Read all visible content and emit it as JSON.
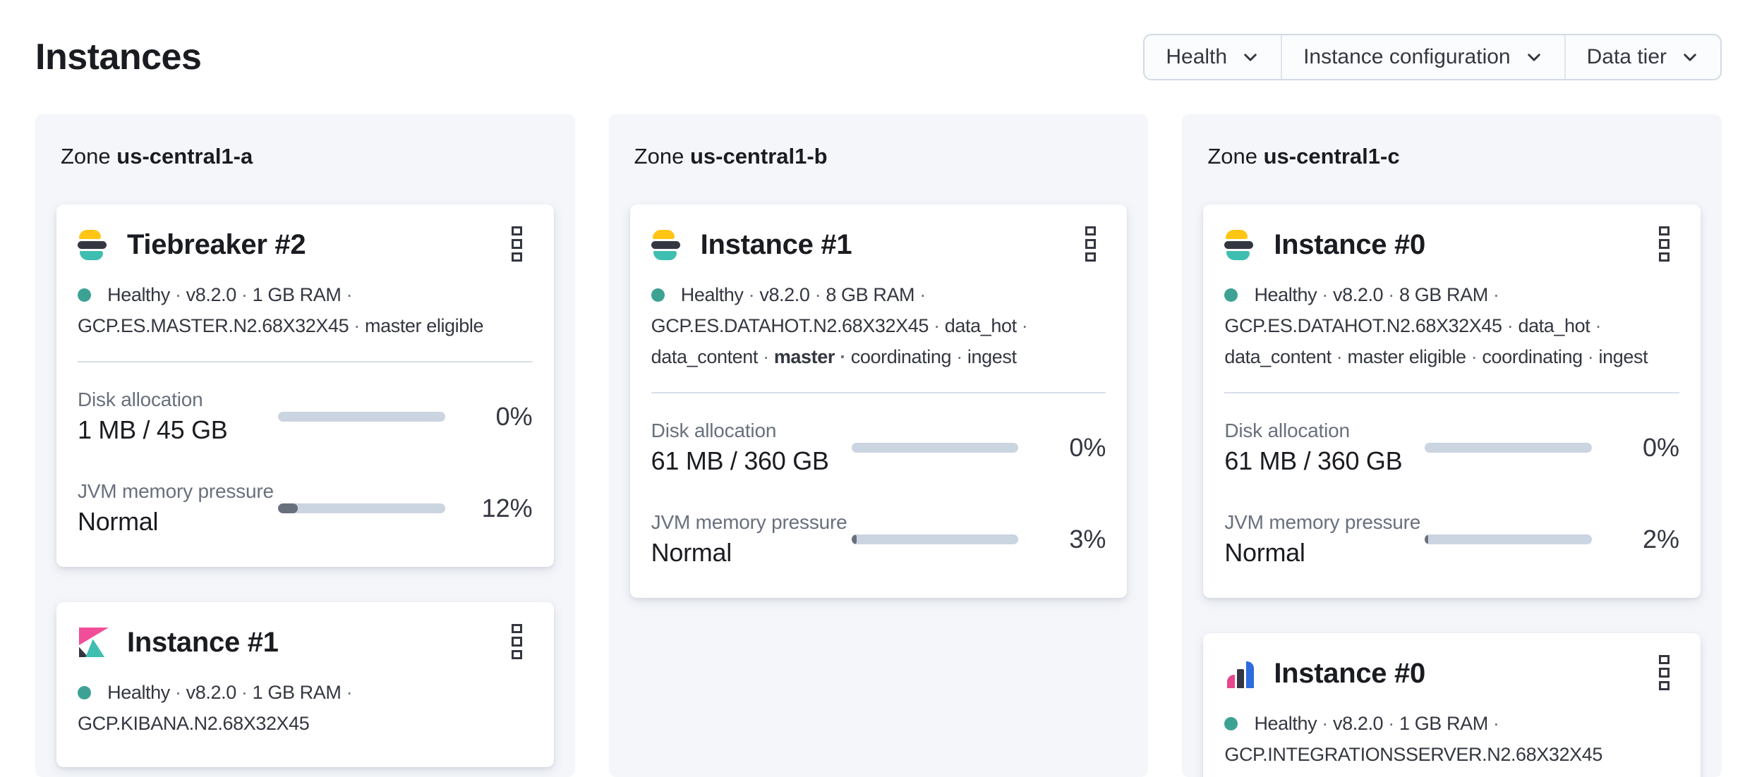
{
  "page": {
    "title": "Instances"
  },
  "filters": [
    {
      "label": "Health",
      "icon": "chevron-down-icon"
    },
    {
      "label": "Instance configuration",
      "icon": "chevron-down-icon"
    },
    {
      "label": "Data tier",
      "icon": "chevron-down-icon"
    }
  ],
  "colors": {
    "healthy_dot": "#3DA294",
    "bar_track": "#CBD4E1",
    "bar_fill": "#69707D",
    "brand_yellow": "#FEC514",
    "brand_dark": "#343741",
    "brand_teal": "#3EBEB0",
    "brand_pink": "#E8478B",
    "brand_blue": "#2D6BDE",
    "panel_bg": "#F4F6FA"
  },
  "zones": [
    {
      "label": "Zone",
      "name": "us-central1-a",
      "cards": [
        {
          "logo": "elasticsearch",
          "title": "Tiebreaker #2",
          "status": [
            {
              "text": "Healthy"
            },
            {
              "text": "v8.2.0"
            },
            {
              "text": "1 GB RAM"
            },
            {
              "text": "GCP.ES.MASTER.N2.68X32X45"
            },
            {
              "text": "master eligible"
            }
          ],
          "metrics": [
            {
              "label": "Disk allocation",
              "value": "1 MB / 45 GB",
              "percent": 0,
              "percent_label": "0%"
            },
            {
              "label": "JVM memory pressure",
              "value": "Normal",
              "percent": 12,
              "percent_label": "12%"
            }
          ]
        },
        {
          "logo": "kibana",
          "title": "Instance #1",
          "status": [
            {
              "text": "Healthy"
            },
            {
              "text": "v8.2.0"
            },
            {
              "text": "1 GB RAM"
            },
            {
              "text": "GCP.KIBANA.N2.68X32X45"
            }
          ]
        }
      ]
    },
    {
      "label": "Zone",
      "name": "us-central1-b",
      "cards": [
        {
          "logo": "elasticsearch",
          "title": "Instance #1",
          "status": [
            {
              "text": "Healthy"
            },
            {
              "text": "v8.2.0"
            },
            {
              "text": "8 GB RAM"
            },
            {
              "text": "GCP.ES.DATAHOT.N2.68X32X45"
            },
            {
              "text": "data_hot"
            },
            {
              "text": "data_content"
            },
            {
              "text": "master",
              "bold": true
            },
            {
              "text": "coordinating"
            },
            {
              "text": "ingest"
            }
          ],
          "metrics": [
            {
              "label": "Disk allocation",
              "value": "61 MB / 360 GB",
              "percent": 0,
              "percent_label": "0%"
            },
            {
              "label": "JVM memory pressure",
              "value": "Normal",
              "percent": 3,
              "percent_label": "3%"
            }
          ]
        }
      ]
    },
    {
      "label": "Zone",
      "name": "us-central1-c",
      "cards": [
        {
          "logo": "elasticsearch",
          "title": "Instance #0",
          "status": [
            {
              "text": "Healthy"
            },
            {
              "text": "v8.2.0"
            },
            {
              "text": "8 GB RAM"
            },
            {
              "text": "GCP.ES.DATAHOT.N2.68X32X45"
            },
            {
              "text": "data_hot"
            },
            {
              "text": "data_content"
            },
            {
              "text": "master eligible"
            },
            {
              "text": "coordinating"
            },
            {
              "text": "ingest"
            }
          ],
          "metrics": [
            {
              "label": "Disk allocation",
              "value": "61 MB / 360 GB",
              "percent": 0,
              "percent_label": "0%"
            },
            {
              "label": "JVM memory pressure",
              "value": "Normal",
              "percent": 2,
              "percent_label": "2%"
            }
          ]
        },
        {
          "logo": "integrations-server",
          "title": "Instance #0",
          "status": [
            {
              "text": "Healthy"
            },
            {
              "text": "v8.2.0"
            },
            {
              "text": "1 GB RAM"
            },
            {
              "text": "GCP.INTEGRATIONSSERVER.N2.68X32X45"
            }
          ]
        }
      ]
    }
  ]
}
